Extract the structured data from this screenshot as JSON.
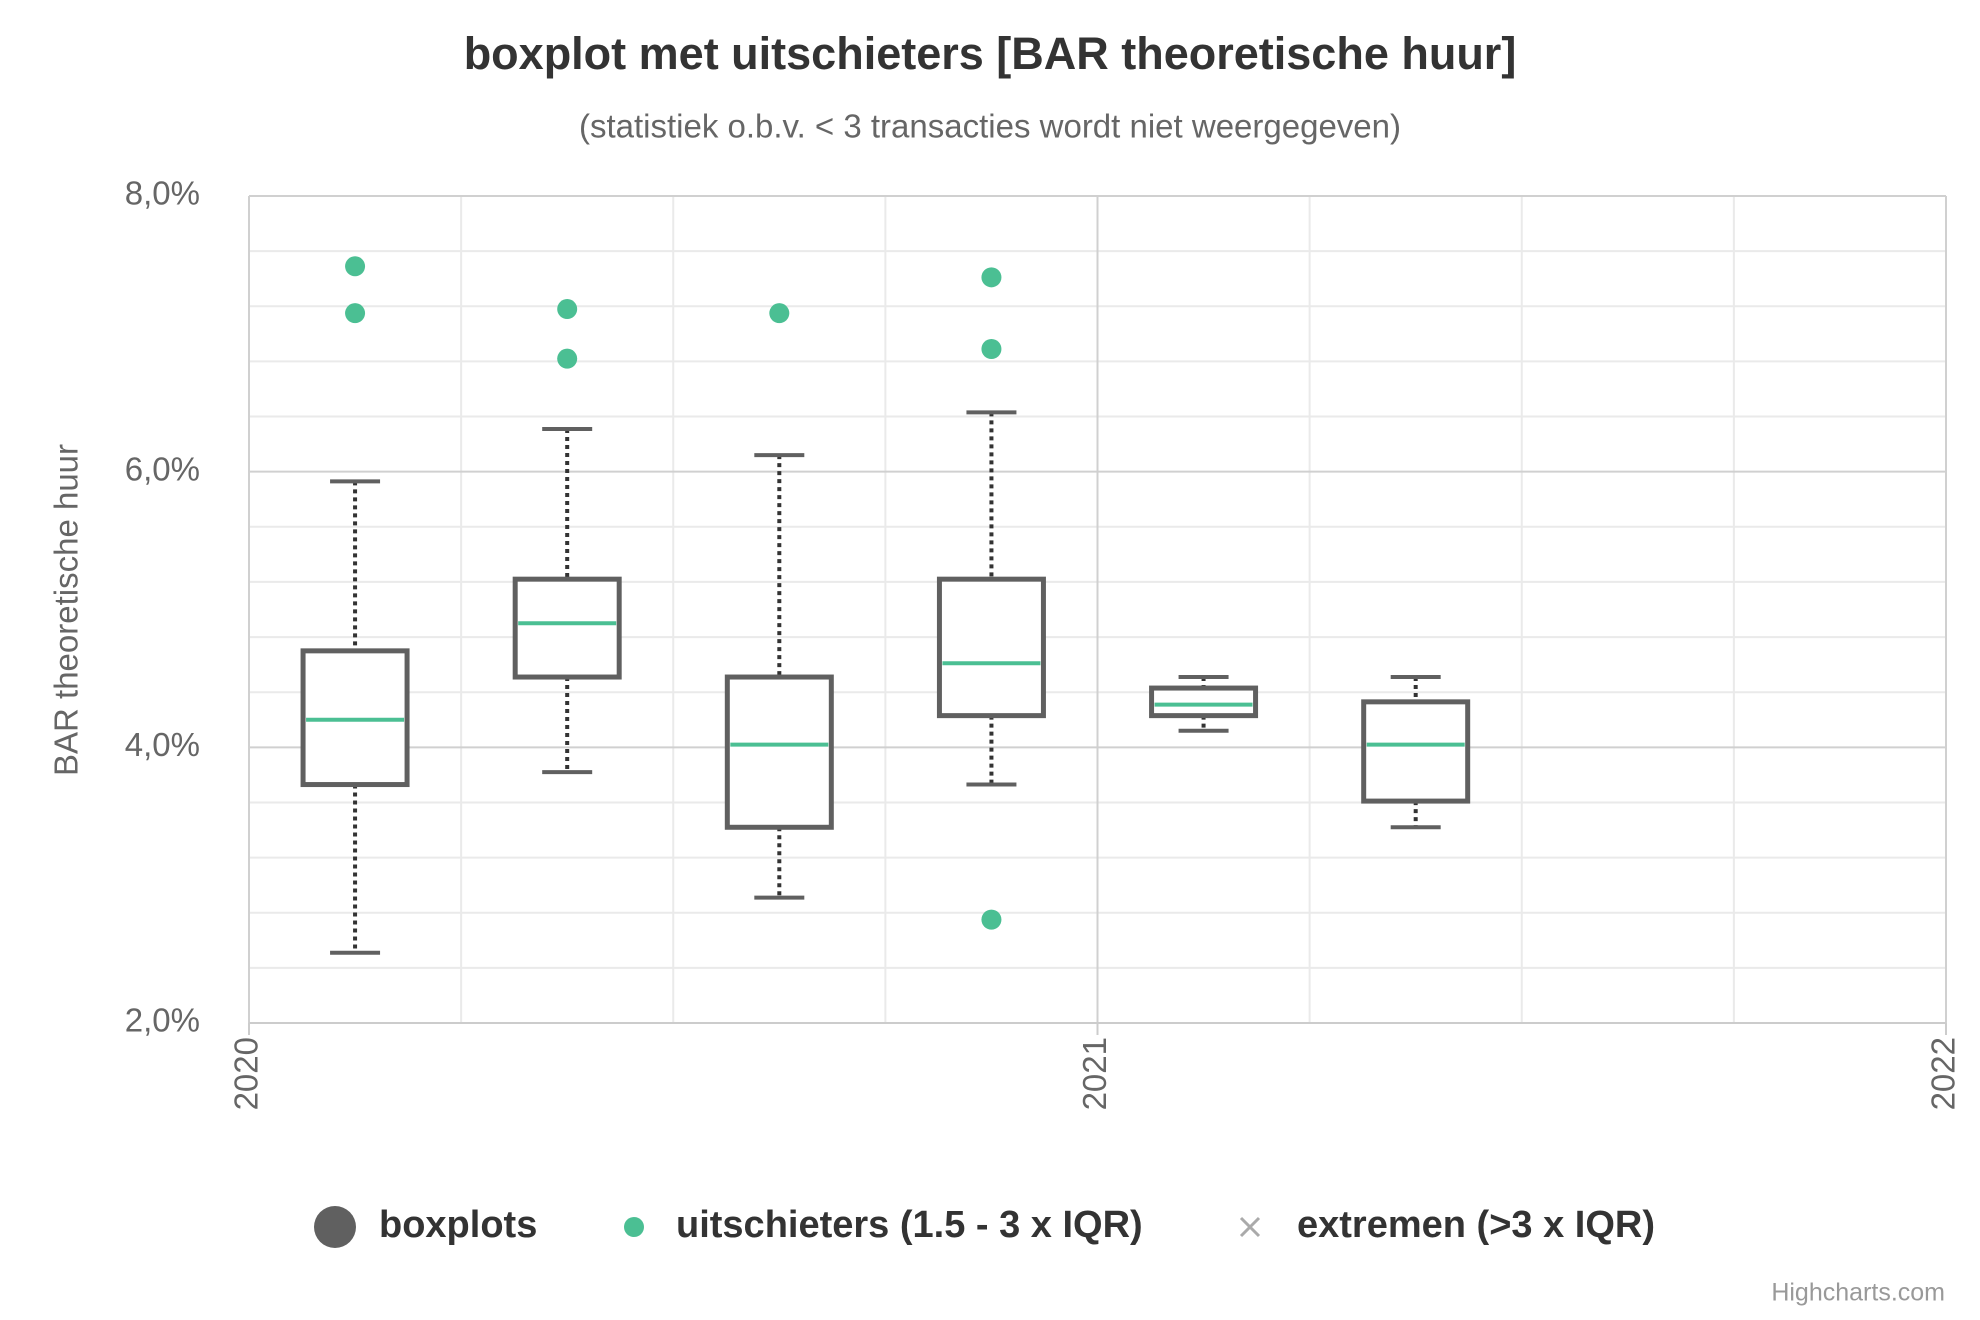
{
  "chart_data": {
    "type": "boxplot",
    "title": "boxplot met uitschieters [BAR theoretische huur]",
    "subtitle": "(statistiek o.b.v. < 3 transacties wordt niet weergegeven)",
    "y_axis_label": "BAR theoretische huur",
    "xlim": [
      2020,
      2022
    ],
    "xticks": [
      2020,
      2021,
      2022
    ],
    "ylim": [
      2,
      8
    ],
    "yticks": [
      {
        "value": 2,
        "label": "2,0%"
      },
      {
        "value": 4,
        "label": "4,0%"
      },
      {
        "value": 6,
        "label": "6,0%"
      },
      {
        "value": 8,
        "label": "8,0%"
      }
    ],
    "grid": true,
    "series": [
      {
        "name": "boxplots",
        "color": "#606060",
        "median_color": "#4bbf93",
        "data": [
          {
            "x": 2020.125,
            "low": 2.51,
            "q1": 3.73,
            "median": 4.2,
            "q3": 4.7,
            "high": 5.93
          },
          {
            "x": 2020.375,
            "low": 3.82,
            "q1": 4.51,
            "median": 4.9,
            "q3": 5.22,
            "high": 6.31
          },
          {
            "x": 2020.625,
            "low": 2.91,
            "q1": 3.42,
            "median": 4.02,
            "q3": 4.51,
            "high": 6.12
          },
          {
            "x": 2020.875,
            "low": 3.73,
            "q1": 4.23,
            "median": 4.61,
            "q3": 5.22,
            "high": 6.43
          },
          {
            "x": 2021.125,
            "low": 4.12,
            "q1": 4.23,
            "median": 4.31,
            "q3": 4.43,
            "high": 4.51
          },
          {
            "x": 2021.375,
            "low": 3.42,
            "q1": 3.61,
            "median": 4.02,
            "q3": 4.33,
            "high": 4.51
          }
        ]
      },
      {
        "name": "uitschieters (1.5 - 3 x IQR)",
        "color": "#4bbf93",
        "marker": "circle",
        "points": [
          {
            "x": 2020.125,
            "y": 7.49
          },
          {
            "x": 2020.125,
            "y": 7.15
          },
          {
            "x": 2020.375,
            "y": 7.18
          },
          {
            "x": 2020.375,
            "y": 6.82
          },
          {
            "x": 2020.625,
            "y": 7.15
          },
          {
            "x": 2020.875,
            "y": 7.41
          },
          {
            "x": 2020.875,
            "y": 6.89
          },
          {
            "x": 2020.875,
            "y": 2.75
          }
        ]
      },
      {
        "name": "extremen (>3 x IQR)",
        "color": "#aaaaaa",
        "marker": "x",
        "points": []
      }
    ],
    "credits": "Highcharts.com"
  }
}
